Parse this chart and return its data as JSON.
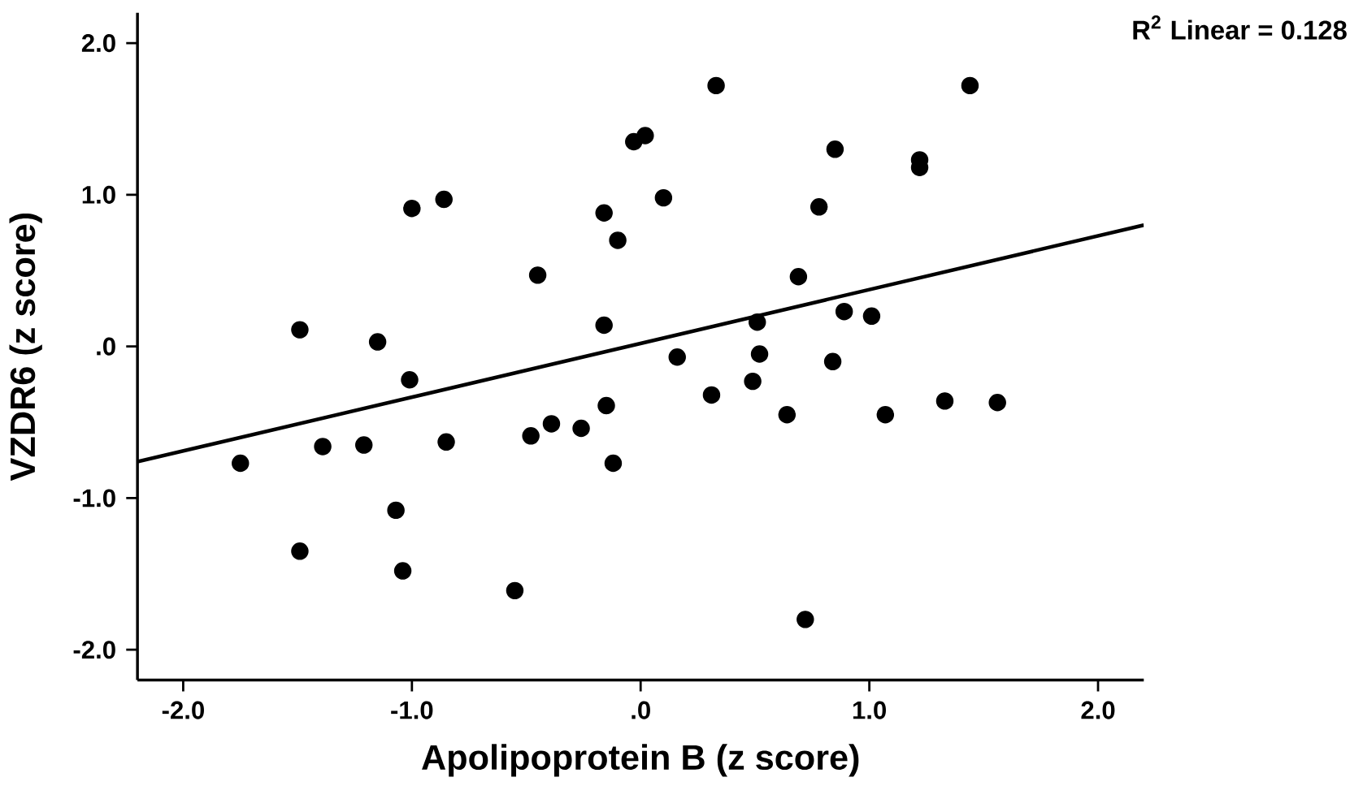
{
  "chart_data": {
    "type": "scatter",
    "xlabel": "Apolipoprotein B (z score)",
    "ylabel": "VZDR6 (z score)",
    "annotations": [
      "R$^{2}$ Linear = 0.128"
    ],
    "xlim": [
      -2.2,
      2.2
    ],
    "ylim": [
      -2.2,
      2.2
    ],
    "xticks": [
      {
        "value": -2,
        "label": "-2.0"
      },
      {
        "value": -1,
        "label": "-1.0"
      },
      {
        "value": 0,
        "label": ".0"
      },
      {
        "value": 1,
        "label": "1.0"
      },
      {
        "value": 2,
        "label": "2.0"
      }
    ],
    "yticks": [
      {
        "value": -2,
        "label": "-2.0"
      },
      {
        "value": -1,
        "label": "-1.0"
      },
      {
        "value": 0,
        "label": ".0"
      },
      {
        "value": 1,
        "label": "1.0"
      },
      {
        "value": 2,
        "label": "2.0"
      }
    ],
    "grid": false,
    "series": [
      {
        "color": "#000000",
        "marker": "circle",
        "x": [
          -1.75,
          -1.49,
          -1.49,
          -1.39,
          -1.21,
          -1.15,
          -1.07,
          -1.04,
          -1.01,
          -1.0,
          -0.86,
          -0.85,
          -0.55,
          -0.48,
          -0.45,
          -0.39,
          -0.26,
          -0.16,
          -0.16,
          -0.15,
          -0.12,
          -0.1,
          -0.03,
          0.02,
          0.1,
          0.16,
          0.31,
          0.33,
          0.49,
          0.51,
          0.52,
          0.64,
          0.69,
          0.72,
          0.78,
          0.84,
          0.85,
          0.89,
          1.01,
          1.07,
          1.22,
          1.22,
          1.33,
          1.44,
          1.56
        ],
        "values": [
          -0.77,
          0.11,
          -1.35,
          -0.66,
          -0.65,
          0.03,
          -1.08,
          -1.48,
          -0.22,
          0.91,
          0.97,
          -0.63,
          -1.61,
          -0.59,
          0.47,
          -0.51,
          -0.54,
          0.88,
          0.14,
          -0.39,
          -0.77,
          0.7,
          1.35,
          1.39,
          0.98,
          -0.07,
          -0.32,
          1.72,
          -0.23,
          0.16,
          -0.05,
          -0.45,
          0.46,
          -1.8,
          0.92,
          -0.1,
          1.3,
          0.23,
          0.2,
          -0.45,
          1.23,
          1.18,
          -0.36,
          1.72,
          -0.37
        ]
      },
      {
        "type": "line",
        "color": "#000000",
        "line_style": "solid",
        "marker": "none",
        "x": [
          -2.2,
          2.2
        ],
        "values": [
          -0.76,
          0.8
        ]
      }
    ]
  }
}
